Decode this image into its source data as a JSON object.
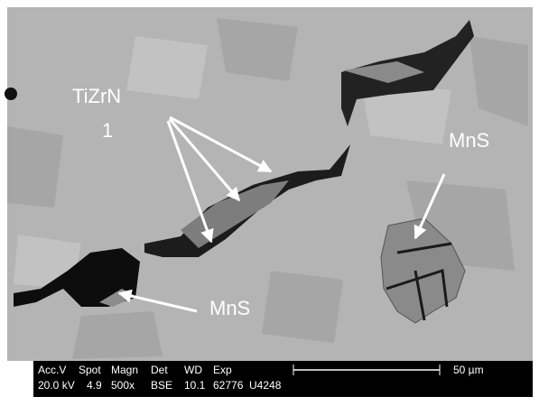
{
  "annotations": [
    {
      "label": "TiZrN"
    },
    {
      "label": "1"
    },
    {
      "label": "MnS"
    },
    {
      "label": "MnS"
    }
  ],
  "info_bar": {
    "headers": [
      "Acc.V",
      "Spot",
      "Magn",
      "Det",
      "WD",
      "Exp"
    ],
    "values": [
      "20.0 kV",
      "4.9",
      "500x",
      "BSE",
      "10.1",
      "62776",
      "U4248"
    ],
    "scale_label": "50 µm"
  }
}
